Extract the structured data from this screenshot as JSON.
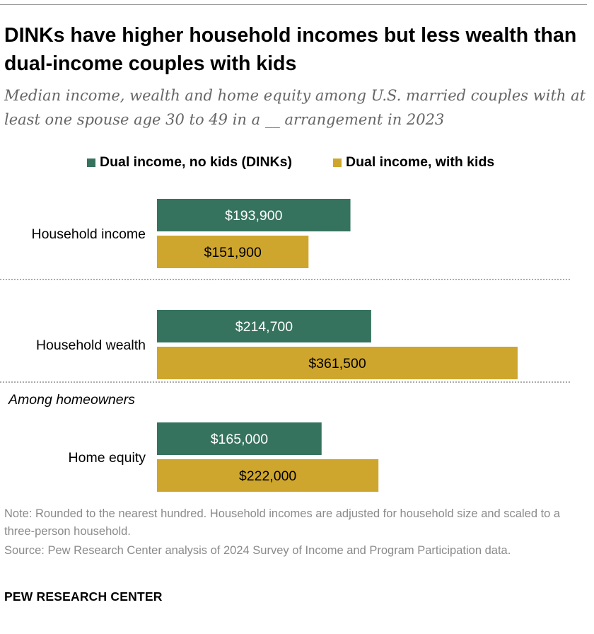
{
  "title": "DINKs have higher household incomes but less wealth than dual-income couples with kids",
  "subtitle": "Median income, wealth and home equity among U.S. married couples with at least one spouse age 30 to 49 in a __ arrangement in 2023",
  "colors": {
    "dinks": "#36735f",
    "kids": "#cfa62d",
    "divider": "#8f8f8f"
  },
  "chart_data": {
    "type": "bar",
    "orientation": "horizontal",
    "categories": [
      "Household income",
      "Household wealth",
      "Home equity"
    ],
    "series": [
      {
        "name": "Dual income, no kids (DINKs)",
        "values": [
          193900,
          214700,
          165000
        ],
        "labels": [
          "$193,900",
          "$214,700",
          "$165,000"
        ]
      },
      {
        "name": "Dual income, with kids",
        "values": [
          151900,
          361500,
          222000
        ],
        "labels": [
          "$151,900",
          "$361,500",
          "$222,000"
        ]
      }
    ],
    "group_label": "Among homeowners",
    "xlim": [
      0,
      361500
    ],
    "grid": false,
    "legend_position": "top"
  },
  "note": "Note: Rounded to the nearest hundred. Household incomes are adjusted for household size and scaled to a three-person household.",
  "source": "Source: Pew Research Center analysis of 2024 Survey of Income and Program Participation data.",
  "brand": "PEW RESEARCH CENTER"
}
